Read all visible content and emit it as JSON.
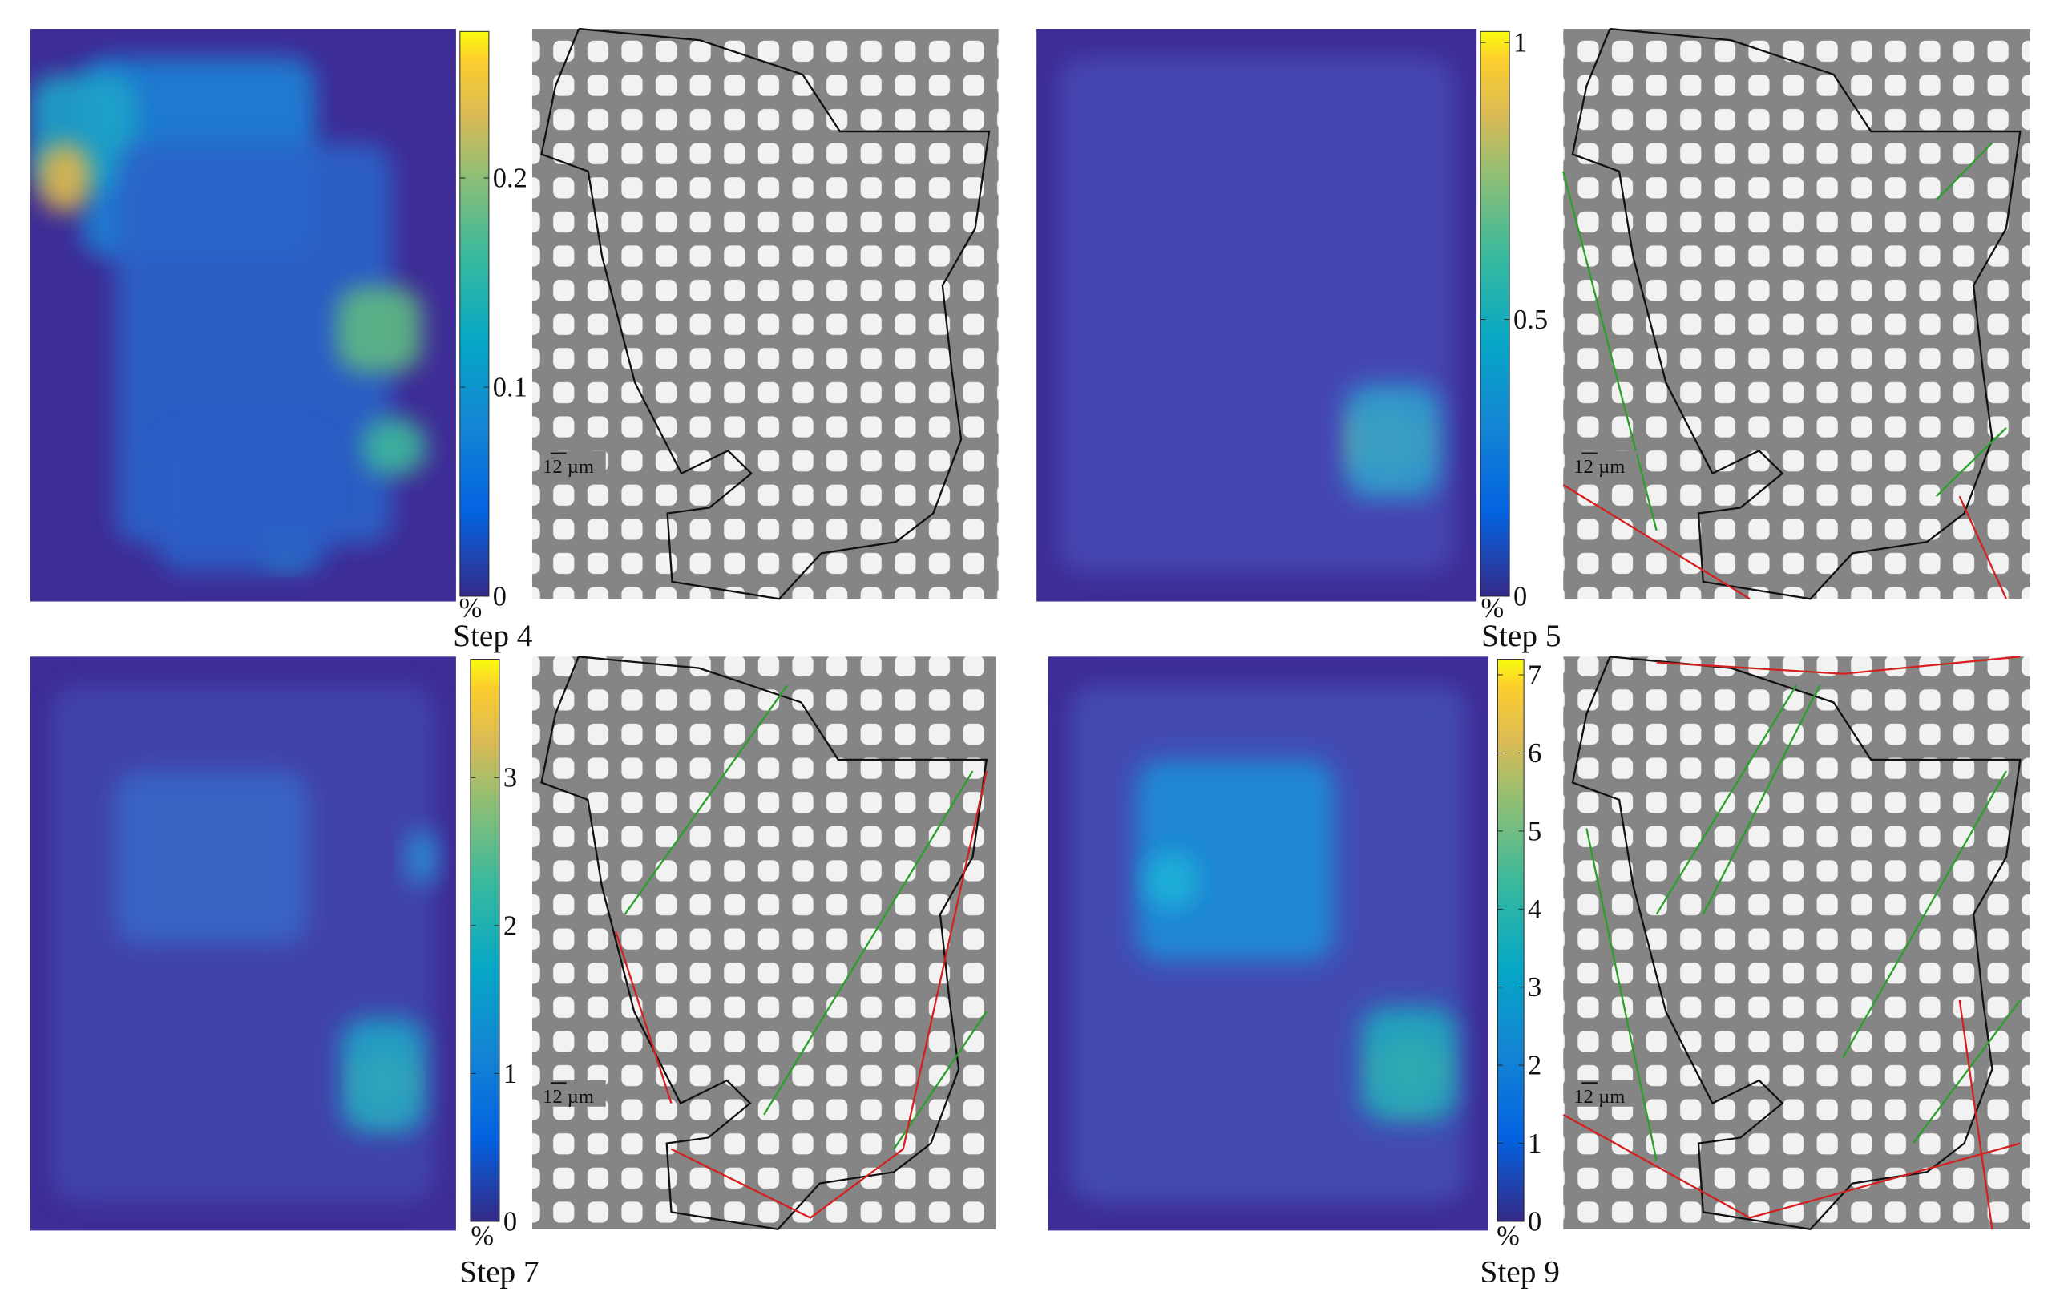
{
  "figure": {
    "panels": [
      {
        "label": "Step 4",
        "unit": "%",
        "scale_bar": "12 µm",
        "colorbar": {
          "lim": [
            0,
            0.27
          ],
          "ticks": [
            0,
            0.1,
            0.2
          ]
        }
      },
      {
        "label": "Step 5",
        "unit": "%",
        "scale_bar": "12 µm",
        "colorbar": {
          "lim": [
            0,
            1.02
          ],
          "ticks": [
            0,
            0.5,
            1
          ]
        }
      },
      {
        "label": "Step 7",
        "unit": "%",
        "scale_bar": "12 µm",
        "colorbar": {
          "lim": [
            0,
            3.8
          ],
          "ticks": [
            0,
            1,
            2,
            3
          ]
        }
      },
      {
        "label": "Step 9",
        "unit": "%",
        "scale_bar": "12 µm",
        "colorbar": {
          "lim": [
            0,
            7.2
          ],
          "ticks": [
            0,
            1,
            2,
            3,
            4,
            5,
            6,
            7
          ]
        }
      }
    ]
  }
}
